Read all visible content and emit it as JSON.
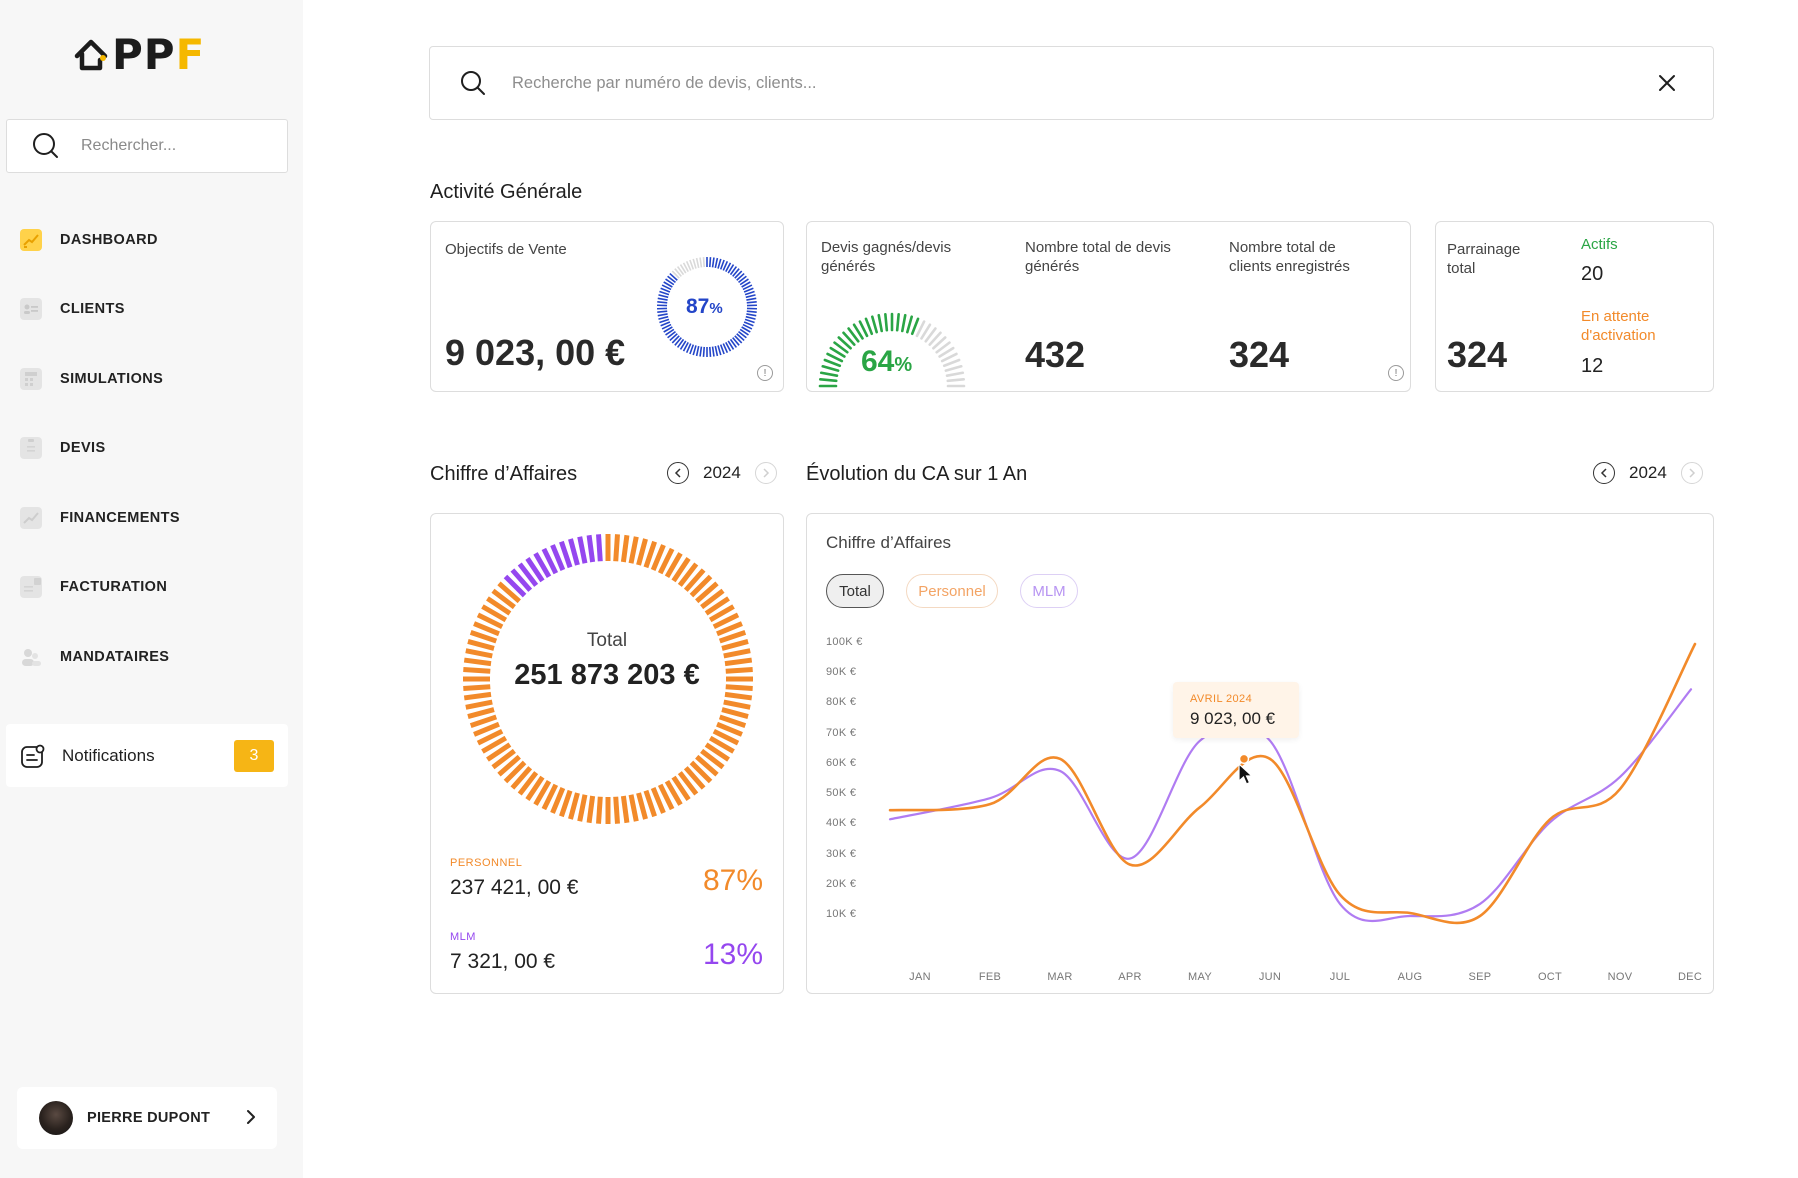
{
  "app": {
    "logo_text_main": "PP",
    "logo_text_accent": "F"
  },
  "sidebar": {
    "search_placeholder": "Rechercher...",
    "items": [
      {
        "label": "DASHBOARD",
        "icon": "dashboard-icon",
        "active": true
      },
      {
        "label": "CLIENTS",
        "icon": "clients-icon"
      },
      {
        "label": "SIMULATIONS",
        "icon": "calculator-icon"
      },
      {
        "label": "DEVIS",
        "icon": "clipboard-icon"
      },
      {
        "label": "FINANCEMENTS",
        "icon": "financing-chart-icon"
      },
      {
        "label": "FACTURATION",
        "icon": "invoice-icon"
      },
      {
        "label": "MANDATAIRES",
        "icon": "agents-icon"
      }
    ],
    "notifications": {
      "label": "Notifications",
      "count": "3",
      "icon": "notification-icon"
    },
    "user": {
      "name": "PIERRE DUPONT"
    }
  },
  "search": {
    "placeholder": "Recherche par numéro de devis, clients..."
  },
  "activity": {
    "title": "Activité Générale",
    "sales_goal": {
      "label": "Objectifs de Vente",
      "value": "9 023, 00 €",
      "percent_value": "87",
      "percent_sign": "%",
      "progress": 0.87
    },
    "quotes": {
      "won_label": "Devis gagnés/devis générés",
      "won_value": "64",
      "won_sign": "%",
      "won_progress": 0.64,
      "total_label": "Nombre total de devis générés",
      "total_value": "432",
      "clients_label": "Nombre total de clients enregistrés",
      "clients_value": "324"
    },
    "referral": {
      "total_label": "Parrainage total",
      "total_value": "324",
      "active_label": "Actifs",
      "active_value": "20",
      "pending_label": "En attente d'activation",
      "pending_value": "12"
    }
  },
  "revenue": {
    "title": "Chiffre d’Affaires",
    "year": "2024",
    "total_label": "Total",
    "total_value": "251 873 203 €",
    "personal_label": "PERSONNEL",
    "personal_value": "237 421, 00 €",
    "personal_percent": "87%",
    "mlm_label": "MLM",
    "mlm_value": "7 321, 00 €",
    "mlm_percent": "13%",
    "share_personal": 0.87
  },
  "evolution": {
    "title": "Évolution du CA sur 1 An",
    "year": "2024",
    "card_title": "Chiffre d’Affaires",
    "tabs": [
      "Total",
      "Personnel",
      "MLM"
    ],
    "active_tab": "Total",
    "tooltip": {
      "label": "AVRIL 2024",
      "value": "9 023, 00 €"
    }
  },
  "colors": {
    "orange": "#f28a2a",
    "purple": "#b07cf2",
    "green": "#2aa545",
    "blue": "#2345c8",
    "yellow": "#f6b515"
  },
  "chart_data": {
    "type": "line",
    "x": [
      "JAN",
      "FEB",
      "MAR",
      "APR",
      "MAY",
      "JUN",
      "JUL",
      "AUG",
      "SEP",
      "OCT",
      "NOV",
      "DEC"
    ],
    "y_ticks": [
      "100K €",
      "90K €",
      "80K €",
      "70K €",
      "60K €",
      "50K €",
      "40K €",
      "30K €",
      "20K €",
      "10K €"
    ],
    "ylim": [
      0,
      100000
    ],
    "series": [
      {
        "name": "Personnel",
        "color": "#f28a2a",
        "values": [
          45000,
          47000,
          62000,
          27000,
          46000,
          62000,
          17000,
          11000,
          10000,
          42000,
          52000,
          100000
        ]
      },
      {
        "name": "MLM",
        "color": "#b07cf2",
        "values": [
          42000,
          49000,
          58000,
          29000,
          68000,
          68000,
          14000,
          10000,
          14000,
          41000,
          56000,
          85000
        ]
      }
    ]
  }
}
